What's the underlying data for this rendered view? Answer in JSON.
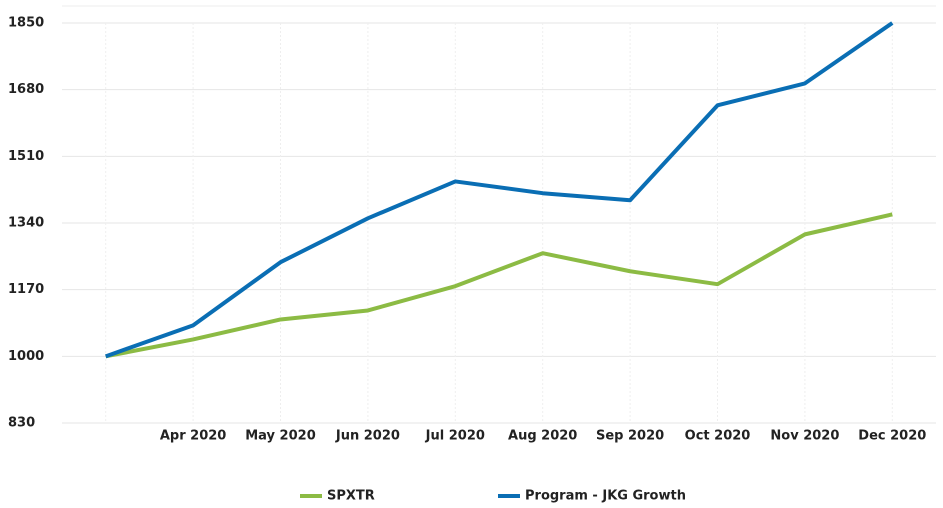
{
  "chart_data": {
    "type": "line",
    "categories": [
      null,
      "Apr 2020",
      "May 2020",
      "Jun 2020",
      "Jul 2020",
      "Aug 2020",
      "Sep 2020",
      "Oct 2020",
      "Nov 2020",
      "Dec 2020"
    ],
    "series": [
      {
        "name": "SPXTR",
        "color": "#8cbb44",
        "values": [
          1000,
          1043,
          1094,
          1117,
          1179,
          1263,
          1217,
          1184,
          1311,
          1362
        ]
      },
      {
        "name": "Program - JKG Growth",
        "color": "#0a6eb4",
        "values": [
          1000,
          1079,
          1240,
          1352,
          1446,
          1416,
          1398,
          1640,
          1696,
          1850
        ]
      }
    ],
    "ylim": [
      830,
      1850
    ],
    "yticks": [
      830,
      1000,
      1170,
      1340,
      1510,
      1680,
      1850
    ],
    "grid": true,
    "legend": "bottom"
  }
}
